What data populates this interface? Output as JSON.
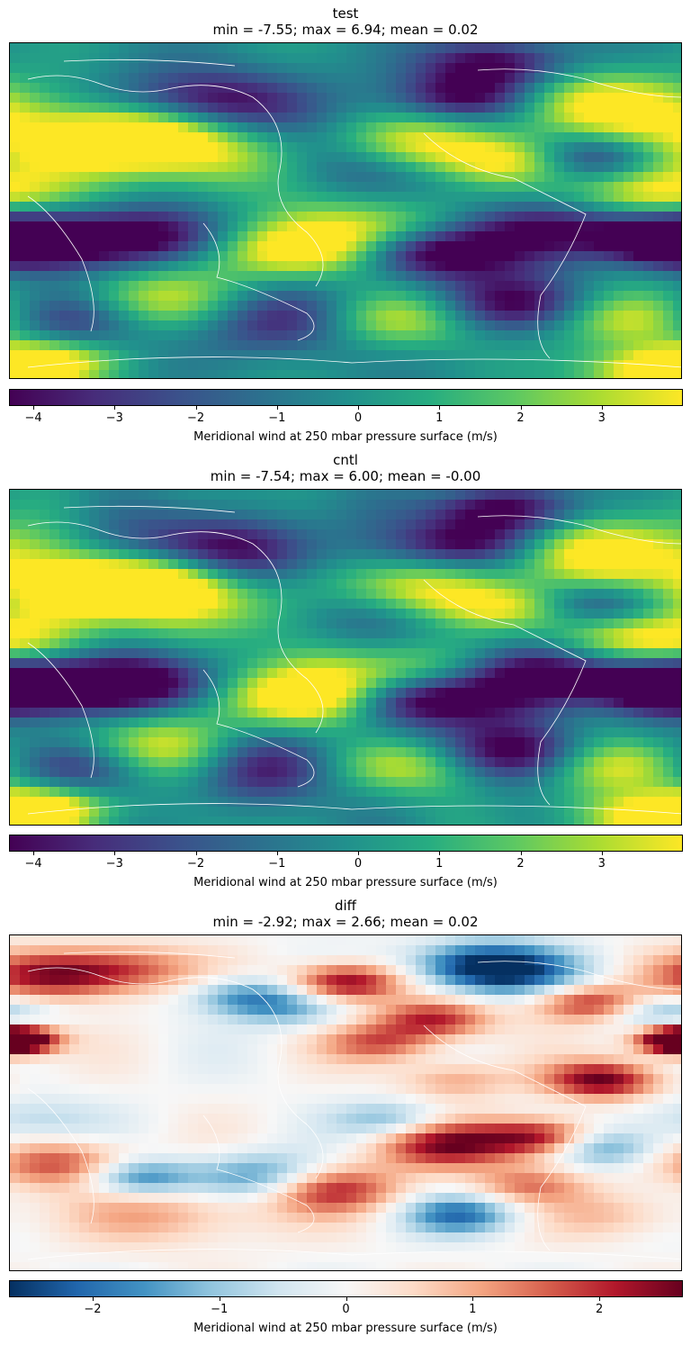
{
  "chart_data": [
    {
      "type": "heatmap",
      "title": "test",
      "subtitle": "min = -7.55; max = 6.94; mean = 0.02",
      "colorbar_label": "Meridional wind at 250 mbar pressure surface (m/s)",
      "colormap": "viridis",
      "vmin": -4.3,
      "vmax": 4.0,
      "ticks": [
        -4,
        -3,
        -2,
        -1,
        0,
        1,
        2,
        3
      ],
      "tick_labels": [
        "−4",
        "−3",
        "−2",
        "−1",
        "0",
        "1",
        "2",
        "3"
      ],
      "coastlines_color": "#ffffff"
    },
    {
      "type": "heatmap",
      "title": "cntl",
      "subtitle": "min = -7.54; max = 6.00; mean = -0.00",
      "colorbar_label": "Meridional wind at 250 mbar pressure surface (m/s)",
      "colormap": "viridis",
      "vmin": -4.3,
      "vmax": 4.0,
      "ticks": [
        -4,
        -3,
        -2,
        -1,
        0,
        1,
        2,
        3
      ],
      "tick_labels": [
        "−4",
        "−3",
        "−2",
        "−1",
        "0",
        "1",
        "2",
        "3"
      ],
      "coastlines_color": "#ffffff"
    },
    {
      "type": "heatmap",
      "title": "diff",
      "subtitle": "min = -2.92; max = 2.66; mean = 0.02",
      "colorbar_label": "Meridional wind at 250 mbar pressure surface (m/s)",
      "colormap": "RdBu_r",
      "vmin": -2.66,
      "vmax": 2.66,
      "ticks": [
        -2,
        -1,
        0,
        1,
        2
      ],
      "tick_labels": [
        "−2",
        "−1",
        "0",
        "1",
        "2"
      ],
      "coastlines_color": "#ffffff"
    }
  ]
}
